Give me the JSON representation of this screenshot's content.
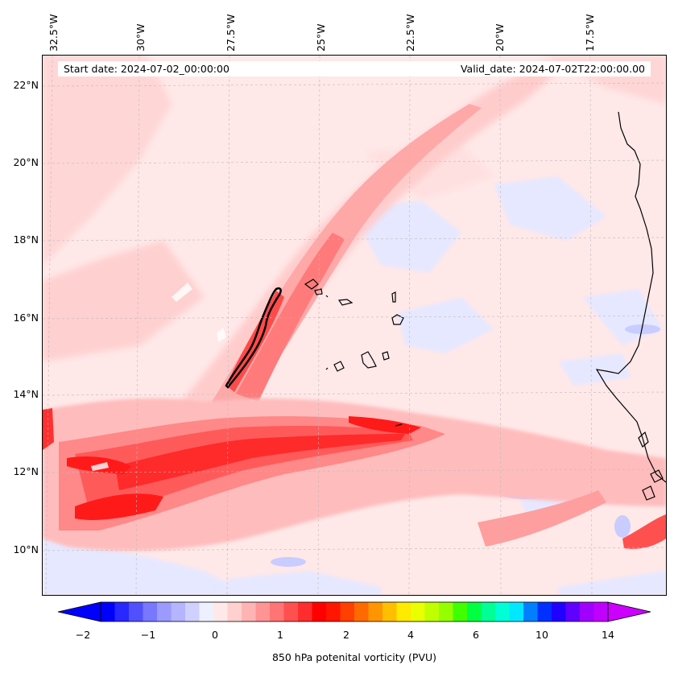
{
  "map": {
    "lon_labels": [
      "32.5°W",
      "30°W",
      "27.5°W",
      "25°W",
      "22.5°W",
      "20°W",
      "17.5°W"
    ],
    "lat_labels": [
      "22°N",
      "20°N",
      "18°N",
      "16°N",
      "14°N",
      "12°N",
      "10°N"
    ],
    "start_date": "Start date: 2024-07-02_00:00:00",
    "valid_date": "Valid_date: 2024-07-02T22:00:00.00",
    "variable": "850 hPa potenital vorticity (PVU)",
    "background_color": "#ffe8e8",
    "coastline_color": "#000000"
  },
  "colorbar": {
    "tick_labels": [
      "−2",
      "−1",
      "0",
      "1",
      "2",
      "4",
      "6",
      "10",
      "14"
    ],
    "colors": [
      "#0000ff",
      "#2828ff",
      "#5050ff",
      "#7878ff",
      "#9a9aff",
      "#b4b4ff",
      "#d0d0ff",
      "#eef0ff",
      "#ffe8e8",
      "#ffd0d0",
      "#ffb4b4",
      "#ff9494",
      "#ff7474",
      "#ff5050",
      "#ff2d2d",
      "#ff0000",
      "#ff1500",
      "#ff4000",
      "#ff6a00",
      "#ff9500",
      "#ffbf00",
      "#ffea00",
      "#eaff00",
      "#bfff00",
      "#95ff00",
      "#40ff00",
      "#00ff40",
      "#00ff95",
      "#00ffd5",
      "#00e8ff",
      "#0080ff",
      "#0030ff",
      "#2000ff",
      "#6000ff",
      "#a000ff",
      "#c000ff"
    ],
    "min_color": "#0000ff",
    "max_color": "#cc00ff"
  }
}
